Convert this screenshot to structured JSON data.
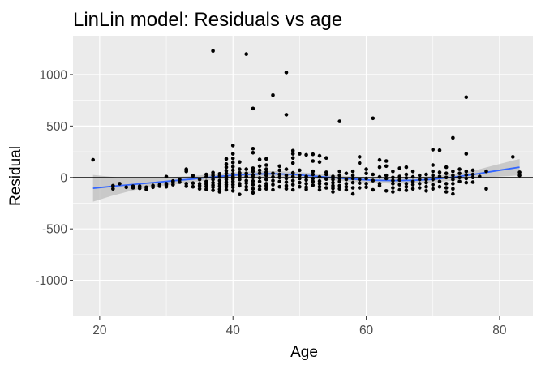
{
  "chart_data": {
    "type": "scatter",
    "title": "LinLin model: Residuals vs age",
    "xlabel": "Age",
    "ylabel": "Residual",
    "xlim": [
      16,
      85
    ],
    "ylim": [
      -1350,
      1370
    ],
    "x_ticks": [
      20,
      40,
      60,
      80
    ],
    "y_ticks": [
      -1000,
      -500,
      0,
      500,
      1000
    ],
    "grid": true,
    "reference_line_y": 0,
    "colors": {
      "panel": "#ebebeb",
      "grid": "#ffffff",
      "points": "#000000",
      "smooth": "#3366ff",
      "band": "#bdbdbd",
      "zero_line": "#000000"
    },
    "points": [
      [
        19,
        172
      ],
      [
        22,
        -110
      ],
      [
        22,
        -80
      ],
      [
        23,
        -60
      ],
      [
        24,
        -95
      ],
      [
        25,
        -85
      ],
      [
        25,
        -100
      ],
      [
        26,
        -105
      ],
      [
        26,
        -85
      ],
      [
        27,
        -115
      ],
      [
        27,
        -95
      ],
      [
        28,
        -78
      ],
      [
        28,
        -95
      ],
      [
        29,
        -70
      ],
      [
        29,
        -85
      ],
      [
        30,
        -60
      ],
      [
        30,
        -72
      ],
      [
        30,
        -90
      ],
      [
        30,
        8
      ],
      [
        31,
        -35
      ],
      [
        31,
        -50
      ],
      [
        31,
        -70
      ],
      [
        32,
        -45
      ],
      [
        32,
        -20
      ],
      [
        33,
        60
      ],
      [
        33,
        80
      ],
      [
        33,
        70
      ],
      [
        33,
        -60
      ],
      [
        33,
        -85
      ],
      [
        34,
        -55
      ],
      [
        34,
        -90
      ],
      [
        34,
        18
      ],
      [
        35,
        -60
      ],
      [
        35,
        -80
      ],
      [
        35,
        -110
      ],
      [
        35,
        -20
      ],
      [
        36,
        5
      ],
      [
        36,
        30
      ],
      [
        36,
        -40
      ],
      [
        36,
        -65
      ],
      [
        36,
        -88
      ],
      [
        36,
        -115
      ],
      [
        37,
        48
      ],
      [
        37,
        20
      ],
      [
        37,
        -20
      ],
      [
        37,
        -50
      ],
      [
        37,
        -75
      ],
      [
        37,
        -95
      ],
      [
        37,
        -125
      ],
      [
        38,
        35
      ],
      [
        38,
        15
      ],
      [
        38,
        -30
      ],
      [
        38,
        -60
      ],
      [
        38,
        -85
      ],
      [
        38,
        -115
      ],
      [
        38,
        -140
      ],
      [
        39,
        180
      ],
      [
        39,
        130
      ],
      [
        39,
        100
      ],
      [
        39,
        65
      ],
      [
        39,
        40
      ],
      [
        39,
        10
      ],
      [
        39,
        -20
      ],
      [
        39,
        -45
      ],
      [
        39,
        -70
      ],
      [
        39,
        -90
      ],
      [
        39,
        -120
      ],
      [
        40,
        310
      ],
      [
        40,
        230
      ],
      [
        40,
        185
      ],
      [
        40,
        145
      ],
      [
        40,
        105
      ],
      [
        40,
        70
      ],
      [
        40,
        35
      ],
      [
        40,
        10
      ],
      [
        40,
        -15
      ],
      [
        40,
        -40
      ],
      [
        40,
        -70
      ],
      [
        40,
        -95
      ],
      [
        40,
        -130
      ],
      [
        41,
        150
      ],
      [
        41,
        80
      ],
      [
        41,
        45
      ],
      [
        41,
        15
      ],
      [
        41,
        -20
      ],
      [
        41,
        -60
      ],
      [
        41,
        -80
      ],
      [
        41,
        -165
      ],
      [
        42,
        80
      ],
      [
        42,
        40
      ],
      [
        42,
        10
      ],
      [
        42,
        -30
      ],
      [
        42,
        -55
      ],
      [
        42,
        -90
      ],
      [
        42,
        -120
      ],
      [
        43,
        280
      ],
      [
        43,
        240
      ],
      [
        43,
        90
      ],
      [
        43,
        60
      ],
      [
        43,
        25
      ],
      [
        43,
        0
      ],
      [
        43,
        -35
      ],
      [
        43,
        -70
      ],
      [
        43,
        -110
      ],
      [
        43,
        -150
      ],
      [
        44,
        175
      ],
      [
        44,
        110
      ],
      [
        44,
        70
      ],
      [
        44,
        40
      ],
      [
        44,
        -5
      ],
      [
        44,
        -40
      ],
      [
        44,
        -85
      ],
      [
        44,
        -115
      ],
      [
        45,
        180
      ],
      [
        45,
        120
      ],
      [
        45,
        80
      ],
      [
        45,
        50
      ],
      [
        45,
        20
      ],
      [
        45,
        -20
      ],
      [
        45,
        -60
      ],
      [
        45,
        -80
      ],
      [
        45,
        -110
      ],
      [
        46,
        40
      ],
      [
        46,
        5
      ],
      [
        46,
        -30
      ],
      [
        46,
        -70
      ],
      [
        46,
        -120
      ],
      [
        47,
        110
      ],
      [
        47,
        70
      ],
      [
        47,
        30
      ],
      [
        47,
        0
      ],
      [
        47,
        -40
      ],
      [
        47,
        -90
      ],
      [
        48,
        80
      ],
      [
        48,
        20
      ],
      [
        48,
        -10
      ],
      [
        48,
        -45
      ],
      [
        48,
        -80
      ],
      [
        48,
        -110
      ],
      [
        49,
        260
      ],
      [
        49,
        190
      ],
      [
        49,
        140
      ],
      [
        49,
        45
      ],
      [
        49,
        10
      ],
      [
        49,
        -30
      ],
      [
        49,
        -70
      ],
      [
        49,
        -120
      ],
      [
        50,
        230
      ],
      [
        50,
        70
      ],
      [
        50,
        20
      ],
      [
        50,
        -10
      ],
      [
        50,
        -50
      ],
      [
        50,
        -90
      ],
      [
        51,
        10
      ],
      [
        51,
        -25
      ],
      [
        51,
        -60
      ],
      [
        51,
        -95
      ],
      [
        51,
        -115
      ],
      [
        52,
        225
      ],
      [
        52,
        160
      ],
      [
        52,
        60
      ],
      [
        52,
        30
      ],
      [
        52,
        -10
      ],
      [
        52,
        -40
      ],
      [
        52,
        -75
      ],
      [
        53,
        210
      ],
      [
        53,
        150
      ],
      [
        53,
        5
      ],
      [
        53,
        -35
      ],
      [
        53,
        -60
      ],
      [
        53,
        -90
      ],
      [
        53,
        -120
      ],
      [
        54,
        190
      ],
      [
        54,
        50
      ],
      [
        54,
        30
      ],
      [
        54,
        -15
      ],
      [
        54,
        -60
      ],
      [
        54,
        -100
      ],
      [
        55,
        10
      ],
      [
        55,
        -20
      ],
      [
        55,
        -50
      ],
      [
        55,
        -80
      ],
      [
        55,
        -105
      ],
      [
        55,
        -140
      ],
      [
        56,
        60
      ],
      [
        56,
        20
      ],
      [
        56,
        -10
      ],
      [
        56,
        -40
      ],
      [
        56,
        -80
      ],
      [
        56,
        -110
      ],
      [
        57,
        40
      ],
      [
        57,
        -20
      ],
      [
        57,
        -60
      ],
      [
        57,
        -90
      ],
      [
        57,
        -120
      ],
      [
        58,
        60
      ],
      [
        58,
        20
      ],
      [
        58,
        -10
      ],
      [
        58,
        -50
      ],
      [
        58,
        -100
      ],
      [
        58,
        -160
      ],
      [
        59,
        200
      ],
      [
        59,
        140
      ],
      [
        59,
        -20
      ],
      [
        59,
        -55
      ],
      [
        59,
        -100
      ],
      [
        60,
        80
      ],
      [
        60,
        40
      ],
      [
        60,
        -10
      ],
      [
        60,
        -60
      ],
      [
        60,
        -95
      ],
      [
        61,
        30
      ],
      [
        61,
        -30
      ],
      [
        61,
        -120
      ],
      [
        62,
        170
      ],
      [
        62,
        100
      ],
      [
        62,
        5
      ],
      [
        62,
        -60
      ],
      [
        62,
        -80
      ],
      [
        63,
        160
      ],
      [
        63,
        110
      ],
      [
        63,
        20
      ],
      [
        63,
        -10
      ],
      [
        63,
        -130
      ],
      [
        64,
        60
      ],
      [
        64,
        0
      ],
      [
        64,
        -30
      ],
      [
        64,
        -60
      ],
      [
        64,
        -100
      ],
      [
        64,
        -140
      ],
      [
        65,
        90
      ],
      [
        65,
        10
      ],
      [
        65,
        -25
      ],
      [
        65,
        -70
      ],
      [
        65,
        -120
      ],
      [
        66,
        100
      ],
      [
        66,
        30
      ],
      [
        66,
        -5
      ],
      [
        66,
        -60
      ],
      [
        66,
        -90
      ],
      [
        66,
        -125
      ],
      [
        67,
        60
      ],
      [
        67,
        5
      ],
      [
        67,
        -40
      ],
      [
        67,
        -70
      ],
      [
        67,
        -110
      ],
      [
        68,
        20
      ],
      [
        68,
        -20
      ],
      [
        68,
        -60
      ],
      [
        68,
        -100
      ],
      [
        69,
        30
      ],
      [
        69,
        -20
      ],
      [
        69,
        -50
      ],
      [
        69,
        -90
      ],
      [
        69,
        -130
      ],
      [
        70,
        270
      ],
      [
        70,
        120
      ],
      [
        70,
        60
      ],
      [
        70,
        20
      ],
      [
        70,
        -20
      ],
      [
        70,
        -70
      ],
      [
        70,
        -110
      ],
      [
        71,
        50
      ],
      [
        71,
        10
      ],
      [
        71,
        -40
      ],
      [
        71,
        -90
      ],
      [
        72,
        100
      ],
      [
        72,
        40
      ],
      [
        72,
        0
      ],
      [
        72,
        -60
      ],
      [
        72,
        -100
      ],
      [
        72,
        -140
      ],
      [
        73,
        60
      ],
      [
        73,
        20
      ],
      [
        73,
        -20
      ],
      [
        73,
        -60
      ],
      [
        73,
        -110
      ],
      [
        73,
        -160
      ],
      [
        74,
        80
      ],
      [
        74,
        40
      ],
      [
        74,
        0
      ],
      [
        74,
        -40
      ],
      [
        75,
        60
      ],
      [
        75,
        25
      ],
      [
        75,
        -10
      ],
      [
        75,
        -50
      ],
      [
        76,
        70
      ],
      [
        76,
        30
      ],
      [
        76,
        0
      ],
      [
        76,
        -45
      ],
      [
        77,
        10
      ],
      [
        78,
        60
      ],
      [
        78,
        -110
      ],
      [
        82,
        200
      ],
      [
        83,
        50
      ],
      [
        83,
        20
      ],
      [
        37,
        1230
      ],
      [
        42,
        1200
      ],
      [
        48,
        1020
      ],
      [
        46,
        800
      ],
      [
        43,
        670
      ],
      [
        48,
        610
      ],
      [
        61,
        575
      ],
      [
        56,
        545
      ],
      [
        75,
        780
      ],
      [
        73,
        385
      ],
      [
        71,
        265
      ],
      [
        75,
        230
      ],
      [
        51,
        220
      ],
      [
        49,
        230
      ]
    ],
    "smooth": {
      "x": [
        19,
        22,
        25,
        28,
        31,
        34,
        37,
        40,
        43,
        46,
        49,
        52,
        55,
        58,
        61,
        64,
        67,
        70,
        73,
        76,
        79,
        83
      ],
      "y": [
        -105,
        -85,
        -68,
        -50,
        -32,
        -15,
        5,
        22,
        32,
        36,
        30,
        15,
        -2,
        -16,
        -27,
        -30,
        -28,
        -18,
        2,
        28,
        60,
        100
      ],
      "lower": [
        -235,
        -175,
        -125,
        -90,
        -70,
        -45,
        -22,
        -5,
        5,
        10,
        5,
        -12,
        -28,
        -42,
        -52,
        -60,
        -58,
        -50,
        -30,
        -8,
        5,
        20
      ],
      "upper": [
        25,
        5,
        -10,
        -10,
        5,
        15,
        32,
        49,
        60,
        62,
        55,
        42,
        24,
        10,
        -2,
        0,
        2,
        14,
        34,
        64,
        115,
        180
      ]
    }
  }
}
